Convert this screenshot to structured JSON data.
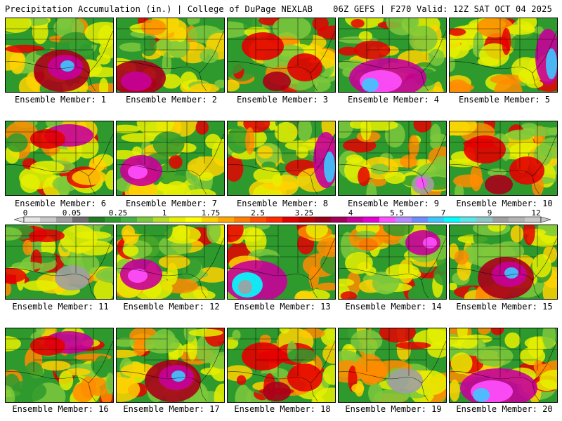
{
  "header": {
    "left": "Precipitation Accumulation (in.) | College of DuPage NEXLAB",
    "right": "06Z GEFS | F270 Valid: 12Z SAT OCT 04 2025"
  },
  "panel_label_prefix": "Ensemble Member: ",
  "members": [
    {
      "label": "Ensemble Member: 1",
      "heavy": "gulf-central"
    },
    {
      "label": "Ensemble Member: 2",
      "heavy": "southwest"
    },
    {
      "label": "Ensemble Member: 3",
      "heavy": "scattered"
    },
    {
      "label": "Ensemble Member: 4",
      "heavy": "gulf-coast"
    },
    {
      "label": "Ensemble Member: 5",
      "heavy": "east-coast"
    },
    {
      "label": "Ensemble Member: 6",
      "heavy": "north"
    },
    {
      "label": "Ensemble Member: 7",
      "heavy": "west"
    },
    {
      "label": "Ensemble Member: 8",
      "heavy": "east-coast"
    },
    {
      "label": "Ensemble Member: 9",
      "heavy": "florida"
    },
    {
      "label": "Ensemble Member: 10",
      "heavy": "scattered"
    },
    {
      "label": "Ensemble Member: 11",
      "heavy": "dry"
    },
    {
      "label": "Ensemble Member: 12",
      "heavy": "west"
    },
    {
      "label": "Ensemble Member: 13",
      "heavy": "gulf-west"
    },
    {
      "label": "Ensemble Member: 14",
      "heavy": "northeast"
    },
    {
      "label": "Ensemble Member: 15",
      "heavy": "gulf-central"
    },
    {
      "label": "Ensemble Member: 16",
      "heavy": "north"
    },
    {
      "label": "Ensemble Member: 17",
      "heavy": "gulf-central"
    },
    {
      "label": "Ensemble Member: 18",
      "heavy": "scattered"
    },
    {
      "label": "Ensemble Member: 19",
      "heavy": "dry"
    },
    {
      "label": "Ensemble Member: 20",
      "heavy": "gulf-coast"
    }
  ],
  "colorbar": {
    "tick_labels": [
      "0",
      "0.05",
      "0.25",
      "1",
      "1.75",
      "2.5",
      "3.25",
      "4",
      "5.5",
      "7",
      "9",
      "12"
    ],
    "colors": [
      "#e6e6e6",
      "#c8c8c8",
      "#a0a0a0",
      "#6e6e6e",
      "#227a22",
      "#2e9a2e",
      "#48b048",
      "#7cc83c",
      "#b4dc28",
      "#e6f000",
      "#ffff00",
      "#ffd200",
      "#ffa800",
      "#ff7e00",
      "#ff5000",
      "#ff2a00",
      "#e00000",
      "#b80000",
      "#960018",
      "#a0005a",
      "#c8009a",
      "#e600d2",
      "#ff50ff",
      "#b48cff",
      "#6e8cff",
      "#3cc8ff",
      "#00ffff",
      "#5ae6e6",
      "#8cc8c8",
      "#a0a0a0",
      "#b4b4b4",
      "#c8c8c8"
    ]
  }
}
